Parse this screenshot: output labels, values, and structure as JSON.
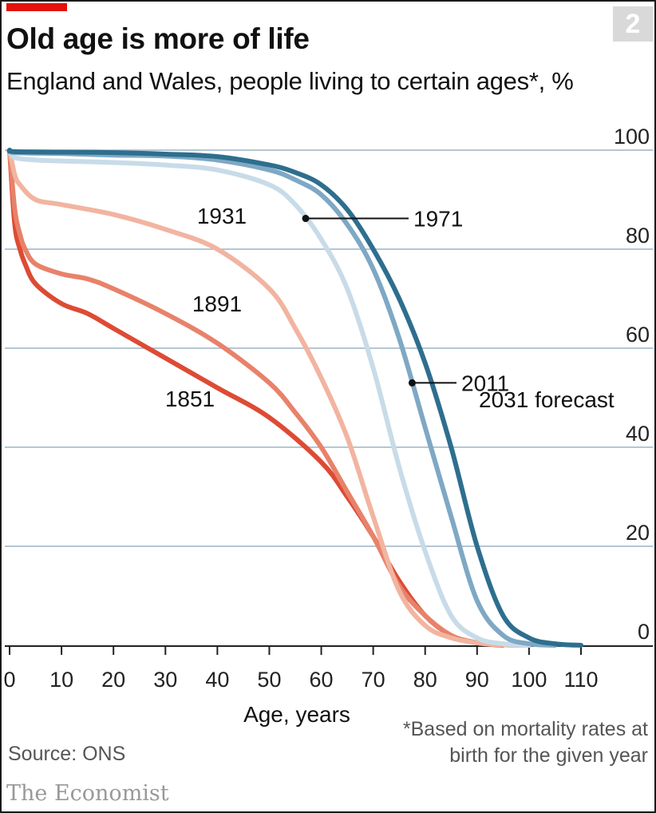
{
  "badge": "2",
  "title": "Old age is more of life",
  "subtitle": "England and Wales, people living to certain ages*, %",
  "source": "Source: ONS",
  "footnote_line1": "*Based on mortality rates at",
  "footnote_line2": "birth for the given year",
  "brand": "The Economist",
  "colors": {
    "brand_red": "#e3120b",
    "s1851": "#de4b34",
    "s1891": "#e8826a",
    "s1931": "#f2b4a0",
    "s1971": "#c8dbe8",
    "s2011": "#7ea8c4",
    "s2031": "#2e6e8e",
    "grid": "#9bb3c6"
  },
  "chart_data": {
    "type": "line",
    "xlabel": "Age, years",
    "ylabel": "",
    "xlim": [
      0,
      110
    ],
    "ylim": [
      0,
      100
    ],
    "x_ticks": [
      "0",
      "10",
      "20",
      "30",
      "40",
      "50",
      "60",
      "70",
      "80",
      "90",
      "100",
      "110"
    ],
    "y_ticks": [
      "0",
      "20",
      "40",
      "60",
      "80",
      "100"
    ],
    "grid": "horizontal",
    "series": [
      {
        "name": "1851",
        "color": "#de4b34",
        "x": [
          0,
          1,
          2,
          3,
          5,
          10,
          15,
          20,
          30,
          40,
          50,
          60,
          65,
          70,
          75,
          80,
          85,
          90,
          95
        ],
        "y": [
          100,
          85,
          80,
          77,
          73,
          69,
          67,
          64,
          58,
          52,
          46,
          37,
          30,
          22,
          13,
          6,
          2,
          0.5,
          0
        ]
      },
      {
        "name": "1891",
        "color": "#e8826a",
        "x": [
          0,
          1,
          2,
          3,
          5,
          10,
          15,
          20,
          30,
          40,
          50,
          55,
          60,
          65,
          70,
          75,
          80,
          85,
          90,
          95,
          100
        ],
        "y": [
          100,
          88,
          83,
          80,
          77,
          75,
          74,
          72,
          67,
          61,
          53,
          47,
          40,
          31,
          22,
          12,
          6,
          2,
          0.5,
          0.1,
          0
        ]
      },
      {
        "name": "1931",
        "color": "#f2b4a0",
        "x": [
          0,
          1,
          2,
          5,
          10,
          20,
          30,
          40,
          50,
          55,
          60,
          65,
          70,
          75,
          80,
          85,
          90,
          95,
          100
        ],
        "y": [
          100,
          95,
          93,
          90,
          89,
          87,
          84,
          80,
          72,
          64,
          54,
          42,
          26,
          11,
          4,
          1.5,
          0.5,
          0.1,
          0
        ]
      },
      {
        "name": "1971",
        "color": "#c8dbe8",
        "x": [
          0,
          1,
          5,
          10,
          20,
          30,
          40,
          50,
          55,
          60,
          65,
          70,
          75,
          80,
          85,
          90,
          95,
          100
        ],
        "y": [
          100,
          98.5,
          98,
          97.8,
          97.5,
          97,
          96,
          93,
          89,
          82,
          72,
          56,
          36,
          19,
          6,
          1.5,
          0.3,
          0
        ]
      },
      {
        "name": "2011",
        "color": "#7ea8c4",
        "x": [
          0,
          1,
          10,
          20,
          30,
          40,
          50,
          55,
          60,
          65,
          70,
          75,
          80,
          85,
          90,
          95,
          100,
          105
        ],
        "y": [
          100,
          99.5,
          99.3,
          99,
          98.8,
          98,
          96,
          94,
          91,
          85,
          76,
          62,
          44,
          26,
          9,
          2,
          0.3,
          0
        ]
      },
      {
        "name": "2031 forecast",
        "color": "#2e6e8e",
        "x": [
          0,
          1,
          10,
          20,
          30,
          40,
          50,
          55,
          60,
          65,
          70,
          75,
          80,
          85,
          90,
          95,
          100,
          105,
          110
        ],
        "y": [
          100,
          99.7,
          99.6,
          99.5,
          99.2,
          98.7,
          97,
          95.5,
          93,
          88,
          80,
          70,
          57,
          40,
          20,
          6,
          1.5,
          0.3,
          0
        ]
      }
    ],
    "annotations": [
      {
        "text": "1931",
        "target": "1931"
      },
      {
        "text": "1891",
        "target": "1891"
      },
      {
        "text": "1851",
        "target": "1851"
      },
      {
        "text": "1971",
        "target": "1971",
        "pointer_age": 57
      },
      {
        "text": "2011",
        "target": "2011",
        "pointer_age": 77.5
      },
      {
        "text": "2031 forecast",
        "target": "2031 forecast"
      }
    ]
  }
}
